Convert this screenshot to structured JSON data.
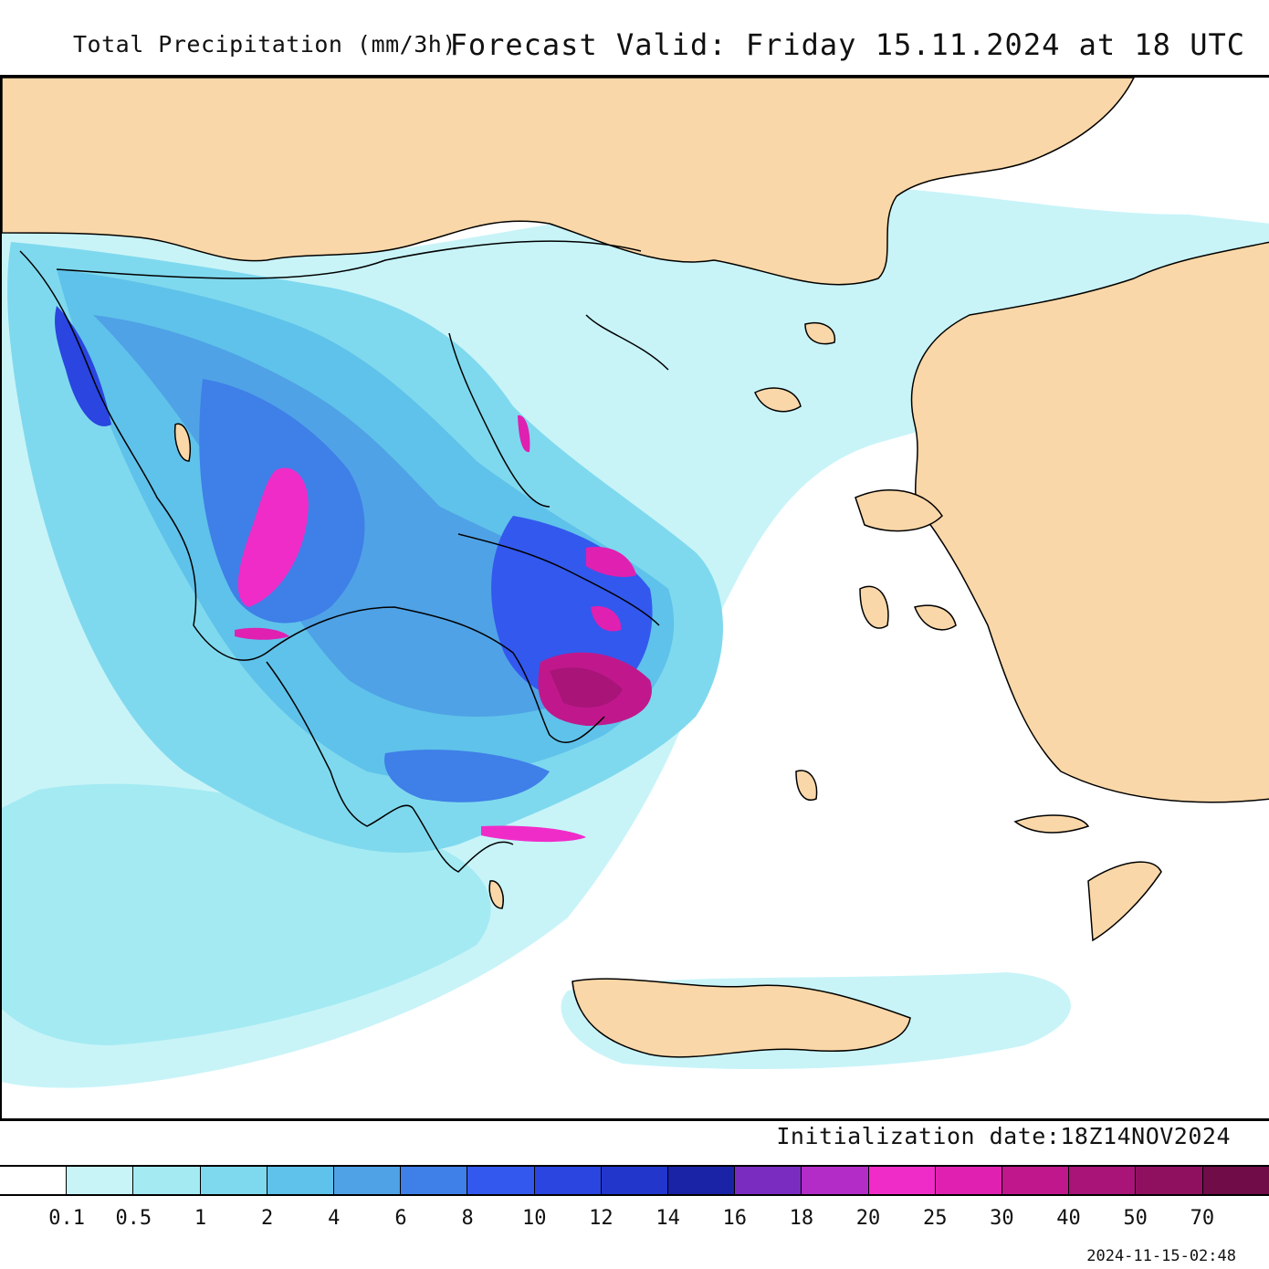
{
  "header": {
    "left_title": "Total Precipitation (mm/3h)",
    "right_title": "Forecast Valid:  Friday 15.11.2024 at 18 UTC"
  },
  "footer": {
    "init_date": "Initialization date:18Z14NOV2024",
    "timestamp": "2024-11-15-02:48"
  },
  "colorbar": {
    "labels": [
      "0.1",
      "0.5",
      "1",
      "2",
      "4",
      "6",
      "8",
      "10",
      "12",
      "14",
      "16",
      "18",
      "20",
      "25",
      "30",
      "40",
      "50",
      "70"
    ],
    "colors": [
      "#ffffff",
      "#c8f4f8",
      "#a4eaf2",
      "#7fd9ee",
      "#5fc2ea",
      "#4fa2e6",
      "#3f7fe8",
      "#3358ee",
      "#2a45e0",
      "#2236cc",
      "#1a22a6",
      "#7a2cc0",
      "#b42cc8",
      "#f02cc8",
      "#e020b0",
      "#c0188c",
      "#a81478",
      "#901060",
      "#700c48"
    ]
  },
  "map": {
    "land_color": "#fad7a8",
    "sea_color": "#ffffff",
    "region": "Greece and Aegean Sea"
  }
}
